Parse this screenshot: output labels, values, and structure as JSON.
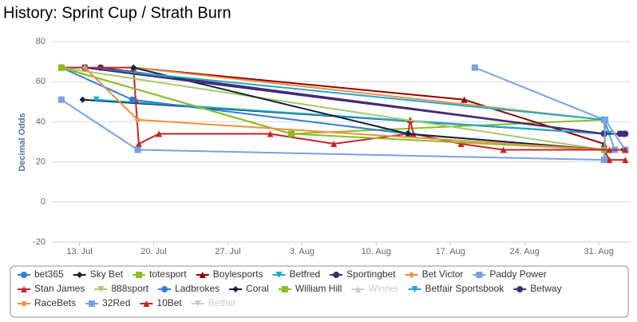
{
  "chart_data": {
    "type": "line",
    "title": "History: Sprint Cup / Strath Burn",
    "y_label": "Decimal Odds",
    "ylim": [
      -20,
      80
    ],
    "yticks": [
      -20,
      0,
      20,
      40,
      60,
      80
    ],
    "grid": true,
    "xlim": [
      10.4,
      65
    ],
    "xticks": [
      {
        "value": 13,
        "label": "13. Jul"
      },
      {
        "value": 20,
        "label": "20. Jul"
      },
      {
        "value": 27,
        "label": "27. Jul"
      },
      {
        "value": 34,
        "label": "3. Aug"
      },
      {
        "value": 41,
        "label": "10. Aug"
      },
      {
        "value": 48,
        "label": "17. Aug"
      },
      {
        "value": 55,
        "label": "24. Aug"
      },
      {
        "value": 62,
        "label": "31. Aug"
      }
    ],
    "series": [
      {
        "name": "bet365",
        "color": "#2f7ed8",
        "marker": "circle",
        "x": [
          11.3,
          13.5,
          62.5,
          64.3
        ],
        "values": [
          67,
          67,
          34,
          34
        ]
      },
      {
        "name": "Sky Bet",
        "color": "#0d233a",
        "marker": "diamond",
        "x": [
          13.3,
          62.5,
          64.3
        ],
        "values": [
          51,
          34,
          34
        ]
      },
      {
        "name": "totesport",
        "color": "#8bbc21",
        "marker": "square",
        "x": [
          11.3,
          33,
          62.5,
          62.6
        ],
        "values": [
          67,
          34,
          41,
          21
        ]
      },
      {
        "name": "Boylesports",
        "color": "#910000",
        "marker": "triangle",
        "x": [
          18.1,
          49.3,
          62.5,
          62.6,
          64.5
        ],
        "values": [
          67,
          51,
          29,
          26,
          26
        ]
      },
      {
        "name": "Betfred",
        "color": "#1aadce",
        "marker": "triangle-down",
        "x": [
          14.6,
          62.5,
          64
        ],
        "values": [
          51,
          34,
          34
        ]
      },
      {
        "name": "Sportingbet",
        "color": "#492970",
        "marker": "circle",
        "x": [
          15,
          62.5,
          64.5
        ],
        "values": [
          67,
          34,
          34
        ]
      },
      {
        "name": "Bet Victor",
        "color": "#f28f43",
        "marker": "diamond",
        "x": [
          18.1,
          62.5,
          62.6,
          64.3
        ],
        "values": [
          67,
          41,
          26,
          26
        ]
      },
      {
        "name": "Paddy Power",
        "color": "#77a1e5",
        "marker": "square",
        "x": [
          50.3,
          62.5,
          63.5,
          64.5
        ],
        "values": [
          67,
          41,
          26,
          26
        ]
      },
      {
        "name": "Stan James",
        "color": "#c42525",
        "marker": "triangle",
        "x": [
          11.3,
          18.1,
          18.3,
          18.6,
          20.5,
          31,
          37,
          44,
          44.2,
          44.5,
          49,
          53,
          62.5,
          63,
          64.5
        ],
        "values": [
          67,
          67,
          51,
          29,
          34,
          34,
          29,
          34,
          41,
          34,
          29,
          26,
          26,
          21,
          21
        ]
      },
      {
        "name": "888sport",
        "color": "#a6c96a",
        "marker": "triangle-down",
        "x": [
          11.3,
          62.5
        ],
        "values": [
          67,
          26
        ]
      },
      {
        "name": "Ladbrokes",
        "color": "#2f7ed8",
        "marker": "circle",
        "x": [
          11.3,
          18,
          44,
          62.5
        ],
        "values": [
          67,
          51,
          34,
          26
        ]
      },
      {
        "name": "Coral",
        "color": "#0d233a",
        "marker": "diamond",
        "x": [
          18.1,
          44,
          62.5,
          64.3
        ],
        "values": [
          67,
          34,
          26,
          26
        ]
      },
      {
        "name": "William Hill",
        "color": "#8bbc21",
        "marker": "square",
        "x": [
          11.3,
          33,
          62.5
        ],
        "values": [
          67,
          34,
          26
        ]
      },
      {
        "name": "Winner",
        "color": "#cccccc",
        "marker": "triangle",
        "visible": false
      },
      {
        "name": "Betfair Sportsbook",
        "color": "#1aadce",
        "marker": "triangle-down",
        "x": [
          13.5,
          62.5,
          63
        ],
        "values": [
          67,
          41,
          34
        ]
      },
      {
        "name": "Betway",
        "color": "#492970",
        "marker": "circle",
        "x": [
          13.5,
          62.5,
          64
        ],
        "values": [
          67,
          34,
          34
        ]
      },
      {
        "name": "RaceBets",
        "color": "#f28f43",
        "marker": "diamond",
        "x": [
          13.5,
          18.5,
          62.5
        ],
        "values": [
          67,
          41,
          26
        ]
      },
      {
        "name": "32Red",
        "color": "#77a1e5",
        "marker": "square",
        "x": [
          11.3,
          18.5,
          62.5,
          62.6,
          64.5
        ],
        "values": [
          51,
          26,
          21,
          41,
          26
        ]
      },
      {
        "name": "10Bet",
        "color": "#c42525",
        "marker": "triangle",
        "x": [
          53,
          63,
          64.5
        ],
        "values": [
          26,
          26,
          26
        ]
      },
      {
        "name": "Betfair",
        "color": "#cccccc",
        "marker": "triangle-down",
        "visible": false
      }
    ]
  }
}
